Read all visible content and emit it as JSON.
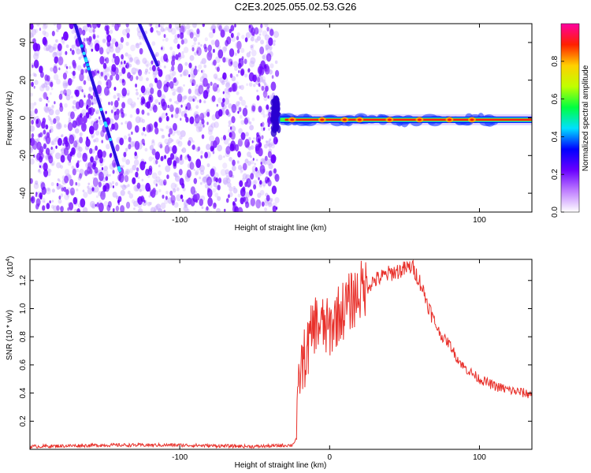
{
  "page": {
    "title": "C2E3.2025.055.02.53.G26"
  },
  "chart_data": [
    {
      "type": "heatmap",
      "title": "C2E3.2025.055.02.53.G26",
      "xlabel": "Height of straight line (km)",
      "ylabel": "Frequency (Hz)",
      "xlim": [
        -200,
        135
      ],
      "ylim": [
        -50,
        50
      ],
      "x_ticks": [
        -100,
        0,
        100
      ],
      "x_tick_labels": [
        "-100",
        "",
        "100"
      ],
      "y_ticks": [
        -40,
        -20,
        0,
        20,
        40
      ],
      "y_tick_labels": [
        "-40",
        "-20",
        "0",
        "20",
        "40"
      ],
      "grid": false,
      "colorbar": {
        "label": "Normalized spectral amplitude",
        "range": [
          0,
          1
        ],
        "ticks": [
          0.0,
          0.2,
          0.4,
          0.6,
          0.8
        ],
        "tick_labels": [
          "0.0",
          "0.2",
          "0.4",
          "0.6",
          "0.8"
        ],
        "colormap": [
          "#ffffff",
          "#c080ff",
          "#6a00ff",
          "#0000ff",
          "#00e0ff",
          "#00ff40",
          "#c0ff00",
          "#ffd000",
          "#ff2000",
          "#ff00a0"
        ]
      },
      "features": {
        "noise_region_x": [
          -200,
          -35
        ],
        "signal_line": {
          "x_start": -35,
          "x_end": 135,
          "frequency": -1,
          "amplitude_peak": 0.95
        },
        "diagonal_tracks": [
          {
            "x_start": -170,
            "y_start": 50,
            "x_end": -140,
            "y_end": -28
          },
          {
            "x_start": -127,
            "y_start": 50,
            "x_end": -115,
            "y_end": 28
          }
        ]
      }
    },
    {
      "type": "line",
      "xlabel": "Height of straight line (km)",
      "ylabel": "SNR (10 * v/v)",
      "y_scale_label": "(x10",
      "y_scale_exponent": "4",
      "xlim": [
        -200,
        135
      ],
      "ylim": [
        0,
        1.35
      ],
      "x_ticks": [
        -100,
        0,
        100
      ],
      "x_tick_labels": [
        "-100",
        "0",
        "100"
      ],
      "y_ticks": [
        0.2,
        0.4,
        0.6,
        0.8,
        1.0,
        1.2
      ],
      "y_tick_labels": [
        "0.2",
        "0.4",
        "0.6",
        "0.8",
        "1.0",
        "1.2"
      ],
      "grid": false,
      "series": [
        {
          "color": "#e8302a",
          "x": [
            -200,
            -150,
            -100,
            -50,
            -25,
            -22,
            -20,
            -15,
            -10,
            0,
            5,
            10,
            20,
            30,
            40,
            50,
            55,
            60,
            65,
            70,
            75,
            80,
            85,
            90,
            100,
            110,
            120,
            130,
            135
          ],
          "y": [
            0.02,
            0.03,
            0.03,
            0.02,
            0.03,
            0.08,
            0.55,
            0.7,
            0.9,
            0.85,
            0.95,
            1.0,
            1.12,
            1.2,
            1.25,
            1.28,
            1.3,
            1.2,
            1.05,
            0.9,
            0.8,
            0.75,
            0.65,
            0.58,
            0.5,
            0.45,
            0.42,
            0.4,
            0.39
          ]
        }
      ]
    }
  ]
}
